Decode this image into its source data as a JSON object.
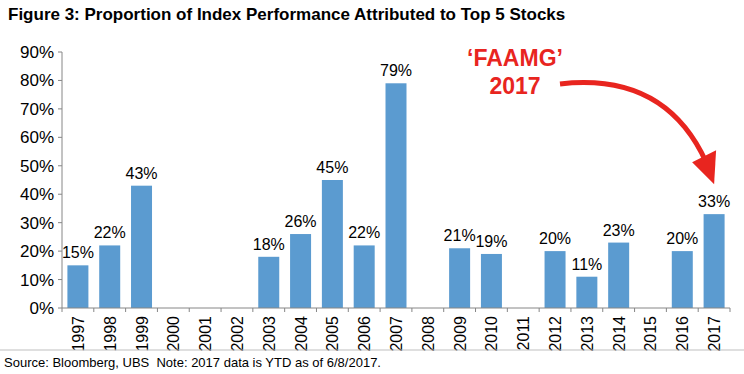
{
  "chart_data": {
    "type": "bar",
    "title": "Figure 3: Proportion of Index Performance Attributed to Top 5 Stocks",
    "categories": [
      "1997",
      "1998",
      "1999",
      "2000",
      "2001",
      "2002",
      "2003",
      "2004",
      "2005",
      "2006",
      "2007",
      "2008",
      "2009",
      "2010",
      "2011",
      "2012",
      "2013",
      "2014",
      "2015",
      "2016",
      "2017"
    ],
    "values": [
      15,
      22,
      43,
      null,
      null,
      null,
      18,
      26,
      45,
      22,
      79,
      null,
      21,
      19,
      null,
      20,
      11,
      23,
      null,
      20,
      33
    ],
    "value_labels": [
      "15%",
      "22%",
      "43%",
      null,
      null,
      null,
      "18%",
      "26%",
      "45%",
      "22%",
      "79%",
      null,
      "21%",
      "19%",
      null,
      "20%",
      "11%",
      "23%",
      null,
      "20%",
      "33%"
    ],
    "color": "#5b9bd0",
    "ylim": [
      0,
      90
    ],
    "yticks": [
      {
        "value": 0,
        "label": "0%"
      },
      {
        "value": 10,
        "label": "10%"
      },
      {
        "value": 20,
        "label": "20%"
      },
      {
        "value": 30,
        "label": "30%"
      },
      {
        "value": 40,
        "label": "40%"
      },
      {
        "value": 50,
        "label": "50%"
      },
      {
        "value": 60,
        "label": "60%"
      },
      {
        "value": 70,
        "label": "70%"
      },
      {
        "value": 80,
        "label": "80%"
      },
      {
        "value": 90,
        "label": "90%"
      }
    ],
    "grid": false,
    "data_labels": true,
    "annotations": [
      "‘FAAMG’",
      "2017"
    ],
    "source": "Source: Bloomberg, UBS  Note: 2017 data is YTD as of 6/8/2017."
  }
}
